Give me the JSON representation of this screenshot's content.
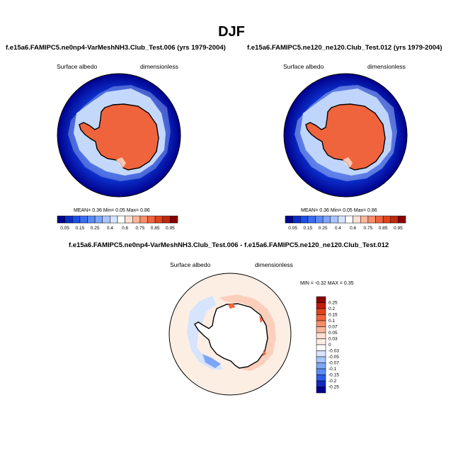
{
  "figure": {
    "title": "DJF"
  },
  "panels": [
    {
      "case_title": "f.e15a6.FAMIPC5.ne0np4-VarMeshNH3.Club_Test.006 (yrs 1979-2004)",
      "variable": "Surface albedo",
      "units": "dimensionless",
      "stats": {
        "mean_label": "MEAN=",
        "mean": "0.36",
        "min_label": "Min=",
        "min": "0.05",
        "max_label": "Max=",
        "max": "0.86"
      }
    },
    {
      "case_title": "f.e15a6.FAMIPC5.ne120_ne120.Club_Test.012 (yrs 1979-2004)",
      "variable": "Surface albedo",
      "units": "dimensionless",
      "stats": {
        "mean_label": "MEAN=",
        "mean": "0.36",
        "min_label": "Min=",
        "min": "0.05",
        "max_label": "Max=",
        "max": "0.86"
      }
    },
    {
      "case_title": "f.e15a6.FAMIPC5.ne0np4-VarMeshNH3.Club_Test.006 - f.e15a6.FAMIPC5.ne120_ne120.Club_Test.012",
      "variable": "Surface albedo",
      "units": "dimensionless",
      "stats": {
        "min_label": "MIN =",
        "min": "-0.32",
        "max_label": "MAX =",
        "max": "0.35"
      }
    }
  ],
  "chart_data": [
    {
      "type": "heatmap",
      "projection": "south-polar-stereographic",
      "field": "surface albedo",
      "mean": 0.36,
      "min": 0.05,
      "max": 0.86,
      "colorbar": {
        "orientation": "horizontal",
        "tick_labels": [
          "0.05",
          "0.15",
          "0.25",
          "0.4",
          "0.6",
          "0.75",
          "0.85",
          "0.95"
        ],
        "levels": [
          0.05,
          0.1,
          0.15,
          0.2,
          0.25,
          0.3,
          0.4,
          0.5,
          0.6,
          0.7,
          0.75,
          0.8,
          0.85,
          0.9,
          0.95
        ],
        "colors": [
          "#00008b",
          "#0b2dc8",
          "#1d4ee6",
          "#3a6ef0",
          "#5b8af5",
          "#7ea6f8",
          "#a9c5fb",
          "#d6e4fd",
          "#ffffff",
          "#fde0d2",
          "#fbb79b",
          "#f78e6a",
          "#f0643d",
          "#e0421d",
          "#c02810",
          "#8b0000"
        ]
      }
    },
    {
      "type": "heatmap",
      "projection": "south-polar-stereographic",
      "field": "surface albedo",
      "mean": 0.36,
      "min": 0.05,
      "max": 0.86,
      "colorbar": {
        "orientation": "horizontal",
        "tick_labels": [
          "0.05",
          "0.15",
          "0.25",
          "0.4",
          "0.6",
          "0.75",
          "0.85",
          "0.95"
        ],
        "levels": [
          0.05,
          0.1,
          0.15,
          0.2,
          0.25,
          0.3,
          0.4,
          0.5,
          0.6,
          0.7,
          0.75,
          0.8,
          0.85,
          0.9,
          0.95
        ],
        "colors": [
          "#00008b",
          "#0b2dc8",
          "#1d4ee6",
          "#3a6ef0",
          "#5b8af5",
          "#7ea6f8",
          "#a9c5fb",
          "#d6e4fd",
          "#ffffff",
          "#fde0d2",
          "#fbb79b",
          "#f78e6a",
          "#f0643d",
          "#e0421d",
          "#c02810",
          "#8b0000"
        ]
      }
    },
    {
      "type": "heatmap",
      "projection": "south-polar-stereographic",
      "field": "surface albedo difference",
      "min": -0.32,
      "max": 0.35,
      "colorbar": {
        "orientation": "vertical",
        "tick_labels": [
          "0.25",
          "0.2",
          "0.15",
          "0.1",
          "0.07",
          "0.05",
          "0.03",
          "0",
          "-0.03",
          "-0.05",
          "-0.07",
          "-0.1",
          "-0.15",
          "-0.2",
          "-0.25"
        ],
        "colors": [
          "#8b0000",
          "#c41a0c",
          "#e0421d",
          "#f0643d",
          "#f78e6a",
          "#fbb79b",
          "#fde0d2",
          "#fdeee4",
          "#ffffff",
          "#d6e4fd",
          "#a9c5fb",
          "#7ea6f8",
          "#5b8af5",
          "#2e5be8",
          "#1228c0",
          "#00008b"
        ]
      }
    }
  ]
}
